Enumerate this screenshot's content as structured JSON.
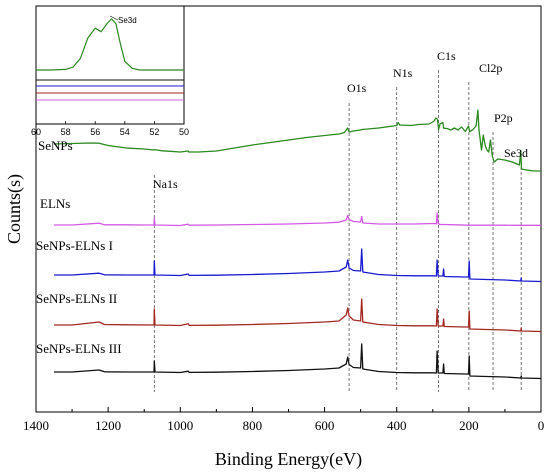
{
  "chart_data": {
    "type": "line",
    "xlabel": "Binding Energy(eV)",
    "ylabel": "Counts(s)",
    "xlim": [
      1400,
      0
    ],
    "x_ticks": [
      1400,
      1200,
      1000,
      800,
      600,
      400,
      200,
      0
    ],
    "x_reversed": true,
    "y_ticks_shown": false,
    "grid": false,
    "legend": "none",
    "series": [
      {
        "name": "SeNPs",
        "color": "#2a8a1f",
        "points": [
          [
            1350,
            0.16
          ],
          [
            1300,
            0.165
          ],
          [
            1250,
            0.17
          ],
          [
            1225,
            0.168
          ],
          [
            1200,
            0.145
          ],
          [
            1150,
            0.12
          ],
          [
            1100,
            0.11
          ],
          [
            1073,
            0.1
          ],
          [
            1072,
            0.104
          ],
          [
            1050,
            0.092
          ],
          [
            1000,
            0.08
          ],
          [
            978,
            0.09
          ],
          [
            977,
            0.08
          ],
          [
            950,
            0.08
          ],
          [
            900,
            0.09
          ],
          [
            850,
            0.12
          ],
          [
            800,
            0.15
          ],
          [
            750,
            0.175
          ],
          [
            700,
            0.2
          ],
          [
            650,
            0.225
          ],
          [
            600,
            0.245
          ],
          [
            560,
            0.26
          ],
          [
            545,
            0.275
          ],
          [
            536,
            0.32
          ],
          [
            532,
            0.28
          ],
          [
            520,
            0.29
          ],
          [
            500,
            0.3
          ],
          [
            497,
            0.305
          ],
          [
            480,
            0.31
          ],
          [
            450,
            0.32
          ],
          [
            420,
            0.335
          ],
          [
            400,
            0.345
          ],
          [
            396,
            0.375
          ],
          [
            392,
            0.35
          ],
          [
            360,
            0.345
          ],
          [
            340,
            0.355
          ],
          [
            310,
            0.36
          ],
          [
            296,
            0.39
          ],
          [
            292,
            0.42
          ],
          [
            287,
            0.408
          ],
          [
            284,
            0.305
          ],
          [
            280,
            0.36
          ],
          [
            272,
            0.375
          ],
          [
            270,
            0.318
          ],
          [
            260,
            0.315
          ],
          [
            250,
            0.3
          ],
          [
            240,
            0.32
          ],
          [
            230,
            0.3
          ],
          [
            220,
            0.33
          ],
          [
            210,
            0.285
          ],
          [
            201,
            0.34
          ],
          [
            198,
            0.285
          ],
          [
            190,
            0.3
          ],
          [
            180,
            0.34
          ],
          [
            175,
            0.5
          ],
          [
            172,
            0.3
          ],
          [
            165,
            0.1
          ],
          [
            160,
            0.25
          ],
          [
            155,
            0.15
          ],
          [
            150,
            0.1
          ],
          [
            145,
            0.08
          ],
          [
            140,
            0.2
          ],
          [
            135,
            0.04
          ],
          [
            130,
            -0.02
          ],
          [
            120,
            0.01
          ],
          [
            100,
            0.0
          ],
          [
            80,
            -0.02
          ],
          [
            60,
            -0.05
          ],
          [
            56,
            0.09
          ],
          [
            54,
            -0.09
          ],
          [
            40,
            -0.1
          ],
          [
            20,
            -0.11
          ],
          [
            0,
            -0.11
          ]
        ]
      },
      {
        "name": "ELNs",
        "color": "#d45ae6",
        "points": [
          [
            1350,
            0.0
          ],
          [
            1300,
            0.0
          ],
          [
            1225,
            0.018
          ],
          [
            1210,
            0.002
          ],
          [
            1150,
            0.002
          ],
          [
            1100,
            0.0
          ],
          [
            1073,
            0.0
          ],
          [
            1072,
            0.07
          ],
          [
            1070,
            0.0
          ],
          [
            1000,
            -0.005
          ],
          [
            978,
            0.008
          ],
          [
            975,
            -0.002
          ],
          [
            900,
            0.0
          ],
          [
            800,
            0.005
          ],
          [
            700,
            0.01
          ],
          [
            600,
            0.02
          ],
          [
            560,
            0.028
          ],
          [
            540,
            0.05
          ],
          [
            536,
            0.095
          ],
          [
            532,
            0.055
          ],
          [
            520,
            0.035
          ],
          [
            500,
            0.03
          ],
          [
            497,
            0.085
          ],
          [
            494,
            0.02
          ],
          [
            450,
            0.01
          ],
          [
            400,
            0.01
          ],
          [
            350,
            0.01
          ],
          [
            300,
            0.015
          ],
          [
            290,
            0.012
          ],
          [
            288,
            0.12
          ],
          [
            285,
            0.015
          ],
          [
            280,
            0.005
          ],
          [
            270,
            0.005
          ],
          [
            200,
            -0.002
          ],
          [
            100,
            -0.002
          ],
          [
            60,
            -0.003
          ],
          [
            0,
            -0.003
          ]
        ]
      },
      {
        "name": "SeNPs-ELNs I",
        "color": "#1a1ad0",
        "points": [
          [
            1350,
            0.0
          ],
          [
            1300,
            0.0
          ],
          [
            1225,
            0.018
          ],
          [
            1210,
            0.002
          ],
          [
            1150,
            0.0
          ],
          [
            1073,
            0.0
          ],
          [
            1072,
            0.14
          ],
          [
            1070,
            0.0
          ],
          [
            1000,
            -0.005
          ],
          [
            978,
            0.01
          ],
          [
            975,
            -0.004
          ],
          [
            900,
            -0.002
          ],
          [
            800,
            0.005
          ],
          [
            700,
            0.015
          ],
          [
            600,
            0.03
          ],
          [
            560,
            0.04
          ],
          [
            540,
            0.08
          ],
          [
            536,
            0.15
          ],
          [
            532,
            0.07
          ],
          [
            520,
            0.045
          ],
          [
            500,
            0.04
          ],
          [
            497,
            0.26
          ],
          [
            494,
            0.03
          ],
          [
            450,
            0.005
          ],
          [
            400,
            -0.005
          ],
          [
            350,
            -0.008
          ],
          [
            300,
            -0.008
          ],
          [
            290,
            -0.01
          ],
          [
            288,
            0.15
          ],
          [
            285,
            -0.01
          ],
          [
            272,
            -0.01
          ],
          [
            270,
            0.06
          ],
          [
            268,
            -0.015
          ],
          [
            210,
            -0.02
          ],
          [
            201,
            -0.02
          ],
          [
            199,
            0.14
          ],
          [
            197,
            -0.04
          ],
          [
            150,
            -0.045
          ],
          [
            100,
            -0.05
          ],
          [
            56,
            -0.06
          ],
          [
            55,
            -0.03
          ],
          [
            54,
            -0.06
          ],
          [
            0,
            -0.065
          ]
        ]
      },
      {
        "name": "SeNPs-ELNs II",
        "color": "#a42820",
        "points": [
          [
            1350,
            0.0
          ],
          [
            1300,
            0.0
          ],
          [
            1225,
            0.03
          ],
          [
            1210,
            0.005
          ],
          [
            1150,
            0.002
          ],
          [
            1073,
            0.0
          ],
          [
            1072,
            0.16
          ],
          [
            1070,
            0.0
          ],
          [
            1000,
            -0.005
          ],
          [
            978,
            0.012
          ],
          [
            975,
            -0.004
          ],
          [
            900,
            -0.002
          ],
          [
            800,
            0.005
          ],
          [
            700,
            0.015
          ],
          [
            600,
            0.03
          ],
          [
            560,
            0.04
          ],
          [
            540,
            0.1
          ],
          [
            536,
            0.17
          ],
          [
            532,
            0.09
          ],
          [
            520,
            0.05
          ],
          [
            500,
            0.04
          ],
          [
            497,
            0.26
          ],
          [
            494,
            0.03
          ],
          [
            450,
            0.005
          ],
          [
            400,
            -0.005
          ],
          [
            350,
            -0.008
          ],
          [
            300,
            -0.008
          ],
          [
            290,
            -0.01
          ],
          [
            288,
            0.16
          ],
          [
            285,
            -0.01
          ],
          [
            272,
            -0.01
          ],
          [
            270,
            0.06
          ],
          [
            268,
            -0.015
          ],
          [
            210,
            -0.02
          ],
          [
            201,
            -0.02
          ],
          [
            199,
            0.14
          ],
          [
            197,
            -0.04
          ],
          [
            150,
            -0.045
          ],
          [
            100,
            -0.05
          ],
          [
            56,
            -0.06
          ],
          [
            55,
            -0.03
          ],
          [
            54,
            -0.06
          ],
          [
            0,
            -0.065
          ]
        ]
      },
      {
        "name": "SeNPs-ELNs III",
        "color": "#111111",
        "points": [
          [
            1350,
            0.0
          ],
          [
            1300,
            0.0
          ],
          [
            1225,
            0.02
          ],
          [
            1210,
            0.002
          ],
          [
            1150,
            0.0
          ],
          [
            1073,
            0.0
          ],
          [
            1072,
            0.11
          ],
          [
            1070,
            0.0
          ],
          [
            1000,
            -0.005
          ],
          [
            978,
            0.008
          ],
          [
            975,
            -0.004
          ],
          [
            900,
            -0.002
          ],
          [
            800,
            0.005
          ],
          [
            700,
            0.015
          ],
          [
            600,
            0.03
          ],
          [
            560,
            0.04
          ],
          [
            540,
            0.08
          ],
          [
            536,
            0.15
          ],
          [
            532,
            0.075
          ],
          [
            520,
            0.045
          ],
          [
            500,
            0.04
          ],
          [
            497,
            0.28
          ],
          [
            494,
            0.03
          ],
          [
            450,
            0.005
          ],
          [
            400,
            -0.005
          ],
          [
            350,
            -0.008
          ],
          [
            300,
            -0.008
          ],
          [
            290,
            -0.01
          ],
          [
            288,
            0.21
          ],
          [
            285,
            -0.01
          ],
          [
            272,
            -0.01
          ],
          [
            270,
            0.08
          ],
          [
            268,
            -0.015
          ],
          [
            210,
            -0.02
          ],
          [
            201,
            -0.02
          ],
          [
            199,
            0.16
          ],
          [
            197,
            -0.04
          ],
          [
            150,
            -0.045
          ],
          [
            100,
            -0.05
          ],
          [
            56,
            -0.06
          ],
          [
            55,
            -0.04
          ],
          [
            54,
            -0.06
          ],
          [
            0,
            -0.065
          ]
        ]
      }
    ],
    "annotations": [
      {
        "label": "Na1s",
        "x": 1072
      },
      {
        "label": "O1s",
        "x": 532
      },
      {
        "label": "N1s",
        "x": 400
      },
      {
        "label": "C1s",
        "x": 284
      },
      {
        "label": "Cl2p",
        "x": 200
      },
      {
        "label": "P2p",
        "x": 133
      },
      {
        "label": "Se3d",
        "x": 55
      }
    ],
    "inset": {
      "xlim": [
        60,
        50
      ],
      "x_ticks": [
        60,
        58,
        56,
        54,
        52,
        50
      ],
      "annotation": "Se3d",
      "peak_series": "SeNPs",
      "peak_points": [
        [
          60,
          0.0
        ],
        [
          59,
          0.0
        ],
        [
          58,
          0.01
        ],
        [
          57.5,
          0.05
        ],
        [
          57,
          0.2
        ],
        [
          56.5,
          0.55
        ],
        [
          56,
          0.72
        ],
        [
          55.6,
          0.66
        ],
        [
          55.2,
          0.8
        ],
        [
          54.9,
          0.88
        ],
        [
          54.6,
          0.8
        ],
        [
          54.3,
          0.45
        ],
        [
          54,
          0.15
        ],
        [
          53.5,
          0.03
        ],
        [
          53,
          0.0
        ],
        [
          52,
          0.0
        ],
        [
          50,
          0.0
        ]
      ],
      "flat_series_colors": [
        "#111111",
        "#1a1ad0",
        "#a42820",
        "#d45ae6"
      ]
    }
  }
}
